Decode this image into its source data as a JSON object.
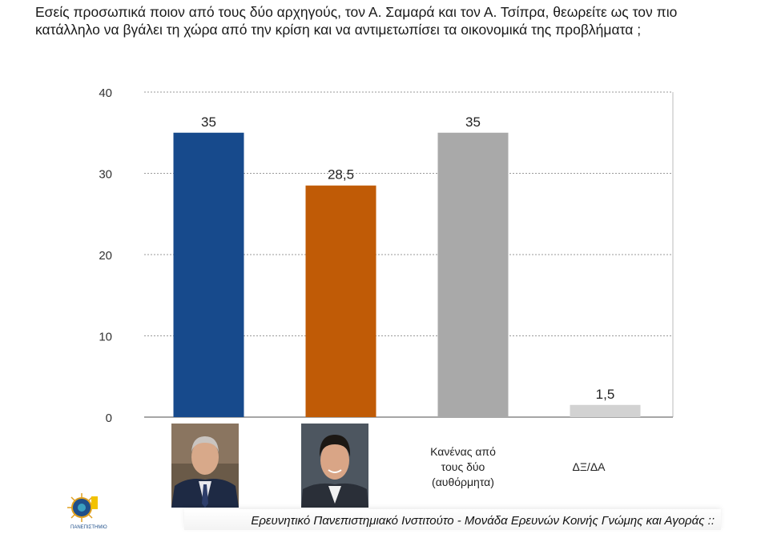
{
  "chart_data": {
    "type": "bar",
    "title": "Εσείς προσωπικά ποιον από τους δύο αρχηγούς, τον Α. Σαμαρά και τον Α. Τσίπρα, θεωρείτε ως τον πιο κατάλληλο να βγάλει τη χώρα από την κρίση και να αντιμετωπίσει τα οικονομικά της προβλήματα ;",
    "categories": [
      "Α. Σαμαράς",
      "Α. Τσίπρας",
      "Κανένας από τους δύο (αυθόρμητα)",
      "ΔΞ/ΔΑ"
    ],
    "category_labels": [
      "",
      "",
      "Κανένας από τους δύο (αυθόρμητα)",
      "ΔΞ/ΔΑ"
    ],
    "values": [
      35,
      28.5,
      35,
      1.5
    ],
    "data_labels": [
      "35",
      "28,5",
      "35",
      "1,5"
    ],
    "colors": [
      "#174a8c",
      "#c05b06",
      "#a9a9a9",
      "#d2d2d2"
    ],
    "ylim": [
      0,
      40
    ],
    "yticks": [
      0,
      10,
      20,
      30,
      40
    ],
    "ytick_labels": [
      "0",
      "10",
      "20",
      "30",
      "40"
    ],
    "grid": true,
    "xlabel": "",
    "ylabel": ""
  },
  "photos": [
    "Α. Σαμαράς photo",
    "Α. Τσίπρας photo"
  ],
  "footer": {
    "text": "Ερευνητικό Πανεπιστημιακό Ινστιτούτο - Μονάδα Ερευνών Κοινής Γνώμης και Αγοράς ::"
  },
  "logo": {
    "text": "ΠΑΝΕΠΙΣΤΗΜΙΟ"
  }
}
